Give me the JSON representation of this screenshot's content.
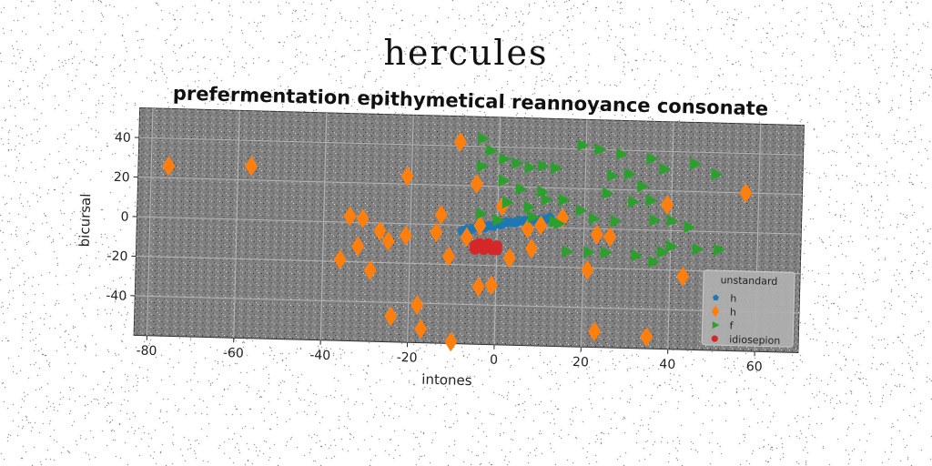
{
  "suptitle": "hercules",
  "chart_data": {
    "type": "scatter",
    "title": "prefermentation epithymetical reannoyance consonate",
    "xlabel": "intones",
    "ylabel": "bicursal",
    "xlim": [
      -83,
      70
    ],
    "ylim": [
      -60,
      55
    ],
    "xticks": [
      -80,
      -60,
      -40,
      -20,
      0,
      20,
      40,
      60
    ],
    "yticks": [
      -40,
      -20,
      0,
      20,
      40
    ],
    "grid": true,
    "background": "#808080",
    "legend": {
      "title": "unstandard",
      "placement": "lower-right",
      "entries": [
        "h",
        "h",
        "f",
        "idiosepion"
      ]
    },
    "series": [
      {
        "name": "h",
        "marker": "pentagon",
        "color": "#1f77b4",
        "points": [
          [
            -8,
            -3
          ],
          [
            -6,
            -2
          ],
          [
            -4,
            -1
          ],
          [
            -2,
            0
          ],
          [
            0,
            1
          ],
          [
            2,
            2
          ],
          [
            4,
            2
          ],
          [
            6,
            3
          ],
          [
            8,
            4
          ],
          [
            10,
            4
          ],
          [
            12,
            5
          ],
          [
            -3,
            -1
          ],
          [
            1,
            1
          ],
          [
            5,
            3
          ],
          [
            9,
            3
          ],
          [
            -7,
            -2
          ],
          [
            3,
            2
          ],
          [
            7,
            3
          ],
          [
            11,
            4
          ],
          [
            -5,
            -1
          ],
          [
            -1,
            0
          ]
        ]
      },
      {
        "name": "h",
        "marker": "thin_diamond",
        "color": "#ff7f0e",
        "points": [
          [
            -76,
            26
          ],
          [
            -57,
            27
          ],
          [
            -9,
            42
          ],
          [
            -5,
            21
          ],
          [
            -21,
            24
          ],
          [
            -31,
            2
          ],
          [
            -34,
            3
          ],
          [
            -32,
            -12
          ],
          [
            -27,
            -4
          ],
          [
            -25,
            -9
          ],
          [
            -21,
            -6
          ],
          [
            -13,
            5
          ],
          [
            -14,
            -4
          ],
          [
            -7,
            -6
          ],
          [
            -4,
            0
          ],
          [
            1,
            10
          ],
          [
            -11,
            -16
          ],
          [
            -36,
            -19
          ],
          [
            -29,
            -24
          ],
          [
            -4,
            -31
          ],
          [
            -1,
            -30
          ],
          [
            -18,
            -41
          ],
          [
            -24,
            -47
          ],
          [
            -17,
            -53
          ],
          [
            -10,
            -59
          ],
          [
            3,
            -16
          ],
          [
            8,
            -11
          ],
          [
            7,
            -1
          ],
          [
            10,
            1
          ],
          [
            15,
            5
          ],
          [
            21,
            -21
          ],
          [
            23,
            -3
          ],
          [
            26,
            -4
          ],
          [
            35,
            -54
          ],
          [
            39,
            13
          ],
          [
            43,
            -23
          ],
          [
            57,
            20
          ],
          [
            23,
            -52
          ]
        ]
      },
      {
        "name": "f",
        "marker": "triangle_right",
        "color": "#2ca02c",
        "points": [
          [
            -4,
            44
          ],
          [
            -2,
            38
          ],
          [
            1,
            34
          ],
          [
            4,
            32
          ],
          [
            7,
            30
          ],
          [
            10,
            31
          ],
          [
            13,
            30
          ],
          [
            -4,
            30
          ],
          [
            1,
            23
          ],
          [
            5,
            19
          ],
          [
            10,
            18
          ],
          [
            11,
            14
          ],
          [
            15,
            14
          ],
          [
            2,
            12
          ],
          [
            7,
            10
          ],
          [
            8,
            5
          ],
          [
            13,
            3
          ],
          [
            14,
            2
          ],
          [
            -4,
            6
          ],
          [
            0,
            3
          ],
          [
            19,
            42
          ],
          [
            23,
            40
          ],
          [
            28,
            38
          ],
          [
            35,
            36
          ],
          [
            38,
            31
          ],
          [
            45,
            34
          ],
          [
            50,
            29
          ],
          [
            26,
            27
          ],
          [
            30,
            28
          ],
          [
            33,
            22
          ],
          [
            35,
            15
          ],
          [
            25,
            18
          ],
          [
            31,
            14
          ],
          [
            36,
            5
          ],
          [
            40,
            5
          ],
          [
            44,
            2
          ],
          [
            19,
            9
          ],
          [
            22,
            5
          ],
          [
            27,
            4
          ],
          [
            16,
            -12
          ],
          [
            21,
            -12
          ],
          [
            25,
            -12
          ],
          [
            32,
            -13
          ],
          [
            38,
            -11
          ],
          [
            40,
            -8
          ],
          [
            46,
            -9
          ],
          [
            51,
            -9
          ],
          [
            36,
            -16
          ]
        ]
      },
      {
        "name": "idiosepion",
        "marker": "circle",
        "color": "#d62728",
        "points": [
          [
            -5,
            -10
          ],
          [
            -4,
            -10
          ],
          [
            -3,
            -11
          ],
          [
            -2,
            -10
          ],
          [
            -1,
            -11
          ],
          [
            0,
            -10
          ],
          [
            -5,
            -12
          ],
          [
            -3,
            -12
          ],
          [
            -1,
            -12
          ],
          [
            -4,
            -9
          ],
          [
            -2,
            -9
          ],
          [
            0,
            -12
          ]
        ]
      }
    ]
  }
}
